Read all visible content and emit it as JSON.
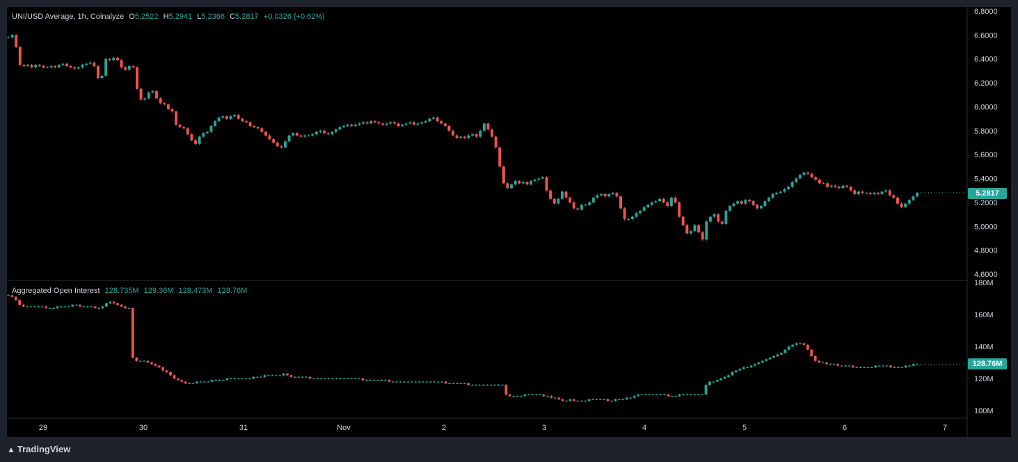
{
  "header": {
    "symbol": "UNI/USD Average, 1h, Coinalyze",
    "o_label": "O",
    "o_value": "5.2522",
    "h_label": "H",
    "h_value": "5.2941",
    "l_label": "L",
    "l_value": "5.2366",
    "c_label": "C",
    "c_value": "5.2817",
    "change": "+0.0326 (+0.62%)"
  },
  "oi_header": {
    "title": "Aggregated Open Interest",
    "v1": "128.735M",
    "v2": "129.36M",
    "v3": "128.473M",
    "v4": "128.76M"
  },
  "price_badge": "5.2817",
  "oi_badge": "128.76M",
  "brand": "TradingView",
  "colors": {
    "up": "#26a69a",
    "down": "#ef5350",
    "background": "#000000",
    "frame": "#1e222d",
    "grid": "#2a2e39"
  },
  "chart_data": [
    {
      "type": "candlestick",
      "title": "UNI/USD Average, 1h, Coinalyze",
      "ylim": [
        4.6,
        6.8
      ],
      "y_ticks": [
        "6.8000",
        "6.6000",
        "6.4000",
        "6.2000",
        "6.0000",
        "5.8000",
        "5.6000",
        "5.4000",
        "5.2000",
        "5.0000",
        "4.8000",
        "4.6000"
      ],
      "x_ticks": [
        "29",
        "30",
        "31",
        "Nov",
        "2",
        "3",
        "4",
        "5",
        "6",
        "7"
      ],
      "last_value": 5.2817,
      "series": [
        {
          "close": [
            6.58,
            6.6,
            6.5,
            6.35,
            6.34,
            6.35,
            6.33,
            6.35,
            6.34,
            6.33,
            6.33,
            6.34,
            6.33,
            6.35,
            6.36,
            6.34,
            6.33,
            6.32,
            6.33,
            6.35,
            6.36,
            6.37,
            6.34,
            6.24,
            6.26,
            6.4,
            6.39,
            6.41,
            6.39,
            6.33,
            6.31,
            6.34,
            6.33,
            6.15,
            6.06,
            6.07,
            6.12,
            6.13,
            6.07,
            6.03,
            6.02,
            5.98,
            5.96,
            5.85,
            5.83,
            5.82,
            5.77,
            5.72,
            5.69,
            5.75,
            5.78,
            5.79,
            5.84,
            5.88,
            5.91,
            5.92,
            5.9,
            5.92,
            5.93,
            5.9,
            5.88,
            5.87,
            5.84,
            5.83,
            5.82,
            5.79,
            5.76,
            5.73,
            5.7,
            5.67,
            5.66,
            5.71,
            5.76,
            5.78,
            5.76,
            5.75,
            5.76,
            5.76,
            5.77,
            5.79,
            5.8,
            5.78,
            5.77,
            5.79,
            5.81,
            5.83,
            5.84,
            5.85,
            5.84,
            5.85,
            5.86,
            5.87,
            5.86,
            5.88,
            5.87,
            5.86,
            5.85,
            5.86,
            5.87,
            5.86,
            5.84,
            5.85,
            5.86,
            5.87,
            5.85,
            5.86,
            5.87,
            5.88,
            5.9,
            5.91,
            5.88,
            5.86,
            5.84,
            5.8,
            5.76,
            5.74,
            5.75,
            5.74,
            5.76,
            5.77,
            5.75,
            5.8,
            5.86,
            5.81,
            5.75,
            5.66,
            5.5,
            5.36,
            5.32,
            5.35,
            5.38,
            5.36,
            5.37,
            5.35,
            5.38,
            5.39,
            5.4,
            5.41,
            5.3,
            5.23,
            5.19,
            5.23,
            5.29,
            5.24,
            5.2,
            5.15,
            5.14,
            5.18,
            5.18,
            5.2,
            5.24,
            5.26,
            5.27,
            5.25,
            5.27,
            5.28,
            5.25,
            5.15,
            5.06,
            5.06,
            5.08,
            5.11,
            5.13,
            5.16,
            5.18,
            5.2,
            5.21,
            5.23,
            5.2,
            5.17,
            5.24,
            5.2,
            5.08,
            5.01,
            4.94,
            4.96,
            5.01,
            4.95,
            4.89,
            5.04,
            5.08,
            5.1,
            5.04,
            5.02,
            5.13,
            5.17,
            5.19,
            5.21,
            5.19,
            5.22,
            5.21,
            5.18,
            5.15,
            5.17,
            5.21,
            5.24,
            5.27,
            5.28,
            5.29,
            5.31,
            5.33,
            5.37,
            5.4,
            5.43,
            5.45,
            5.44,
            5.41,
            5.39,
            5.36,
            5.36,
            5.33,
            5.34,
            5.33,
            5.32,
            5.34,
            5.33,
            5.3,
            5.27,
            5.29,
            5.28,
            5.28,
            5.27,
            5.28,
            5.27,
            5.29,
            5.3,
            5.26,
            5.24,
            5.19,
            5.16,
            5.19,
            5.22,
            5.25,
            5.28
          ]
        }
      ]
    },
    {
      "type": "candlestick",
      "title": "Aggregated Open Interest",
      "ylim": [
        100,
        180
      ],
      "y_ticks": [
        "180M",
        "160M",
        "140M",
        "120M",
        "100M"
      ],
      "x_ticks": [
        "29",
        "30",
        "31",
        "Nov",
        "2",
        "3",
        "4",
        "5",
        "6",
        "7"
      ],
      "last_value": 128.76,
      "series": [
        {
          "close": [
            172,
            171,
            169,
            166,
            165,
            165,
            165,
            165,
            165,
            165,
            164,
            164,
            164,
            165,
            165,
            165,
            165,
            166,
            166,
            165,
            165,
            165,
            165,
            164,
            164,
            165,
            167,
            168,
            167,
            166,
            165,
            164,
            164,
            133,
            131,
            131,
            131,
            130,
            129,
            128,
            127,
            125,
            124,
            122,
            120,
            119,
            118,
            117,
            117,
            117,
            118,
            118,
            118,
            118,
            119,
            119,
            119,
            119,
            120,
            120,
            120,
            120,
            120,
            120,
            120,
            121,
            121,
            121,
            122,
            122,
            122,
            122,
            122,
            123,
            122,
            121,
            121,
            121,
            121,
            121,
            120,
            120,
            120,
            120,
            120,
            120,
            120,
            120,
            120,
            120,
            120,
            120,
            120,
            120,
            119,
            119,
            119,
            119,
            119,
            119,
            119,
            118,
            118,
            118,
            118,
            118,
            118,
            118,
            118,
            118,
            118,
            118,
            118,
            118,
            118,
            118,
            117,
            117,
            117,
            117,
            117,
            117,
            116,
            116,
            116,
            116,
            116,
            116,
            116,
            116,
            116,
            116,
            110,
            109,
            109,
            109,
            109,
            110,
            110,
            110,
            110,
            110,
            109,
            109,
            108,
            108,
            107,
            106,
            106,
            107,
            106,
            106,
            106,
            106,
            107,
            107,
            107,
            107,
            107,
            106,
            106,
            107,
            107,
            107,
            108,
            108,
            109,
            110,
            110,
            110,
            110,
            110,
            110,
            110,
            110,
            109,
            109,
            109,
            110,
            110,
            110,
            110,
            110,
            110,
            110,
            116,
            118,
            118,
            119,
            120,
            121,
            122,
            124,
            125,
            126,
            127,
            127,
            128,
            129,
            130,
            131,
            132,
            133,
            134,
            135,
            136,
            138,
            140,
            141,
            142,
            142,
            141,
            138,
            134,
            131,
            130,
            130,
            129,
            129,
            129,
            128,
            128,
            128,
            128,
            127,
            127,
            127,
            127,
            127,
            127,
            128,
            128,
            128,
            128,
            127,
            127,
            127,
            127,
            128,
            128,
            129,
            129
          ]
        }
      ]
    }
  ]
}
